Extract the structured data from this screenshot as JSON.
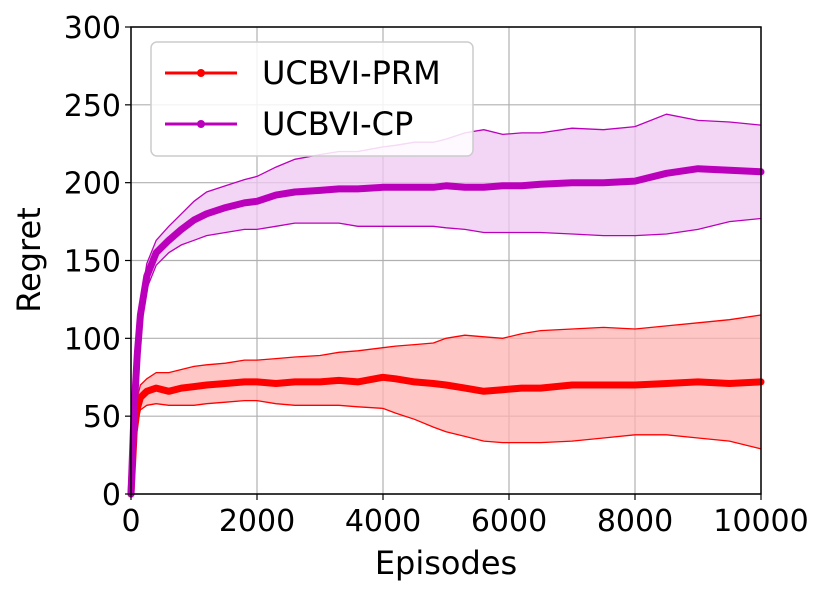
{
  "chart_data": {
    "type": "line",
    "xlabel": "Episodes",
    "ylabel": "Regret",
    "xlim": [
      0,
      10000
    ],
    "ylim": [
      0,
      300
    ],
    "xticks": [
      0,
      2000,
      4000,
      6000,
      8000,
      10000
    ],
    "yticks": [
      0,
      50,
      100,
      150,
      200,
      250,
      300
    ],
    "xtick_labels": [
      "0",
      "2000",
      "4000",
      "6000",
      "8000",
      "10000"
    ],
    "ytick_labels": [
      "0",
      "50",
      "100",
      "150",
      "200",
      "250",
      "300"
    ],
    "grid": true,
    "legend_position": "top-left",
    "series": [
      {
        "name": "UCBVI-PRM",
        "color": "#ff0000",
        "fill_color": "#ffb3b3",
        "x": [
          0,
          50,
          100,
          150,
          250,
          400,
          600,
          800,
          1000,
          1200,
          1500,
          1800,
          2000,
          2300,
          2600,
          3000,
          3300,
          3600,
          4000,
          4200,
          4500,
          4800,
          5000,
          5300,
          5600,
          5900,
          6200,
          6500,
          7000,
          7500,
          8000,
          8500,
          9000,
          9500,
          10000
        ],
        "mean": [
          0,
          40,
          55,
          62,
          66,
          68,
          66,
          68,
          69,
          70,
          71,
          72,
          72,
          71,
          72,
          72,
          73,
          72,
          75,
          74,
          72,
          71,
          70,
          68,
          66,
          67,
          68,
          68,
          70,
          70,
          70,
          71,
          72,
          71,
          72
        ],
        "upper": [
          0,
          48,
          62,
          70,
          74,
          78,
          78,
          80,
          82,
          83,
          84,
          86,
          86,
          87,
          88,
          89,
          91,
          92,
          94,
          95,
          96,
          97,
          100,
          102,
          101,
          100,
          103,
          105,
          106,
          107,
          106,
          108,
          110,
          112,
          115
        ],
        "lower": [
          0,
          32,
          47,
          54,
          57,
          58,
          57,
          57,
          57,
          58,
          59,
          60,
          60,
          58,
          57,
          57,
          57,
          56,
          55,
          52,
          48,
          43,
          40,
          37,
          34,
          33,
          33,
          33,
          34,
          36,
          38,
          38,
          36,
          34,
          29
        ]
      },
      {
        "name": "UCBVI-CP",
        "color": "#bb00bb",
        "fill_color": "#efc8f2",
        "x": [
          0,
          50,
          100,
          150,
          250,
          400,
          600,
          800,
          1000,
          1200,
          1500,
          1800,
          2000,
          2300,
          2600,
          3000,
          3300,
          3600,
          4000,
          4200,
          4500,
          4800,
          5000,
          5300,
          5600,
          5900,
          6200,
          6500,
          7000,
          7500,
          8000,
          8500,
          9000,
          9500,
          10000
        ],
        "mean": [
          0,
          55,
          90,
          115,
          140,
          155,
          163,
          170,
          176,
          180,
          184,
          187,
          188,
          192,
          194,
          195,
          196,
          196,
          197,
          197,
          197,
          197,
          198,
          197,
          197,
          198,
          198,
          199,
          200,
          200,
          201,
          206,
          209,
          208,
          207
        ],
        "upper": [
          0,
          60,
          96,
          122,
          148,
          163,
          172,
          180,
          188,
          194,
          198,
          202,
          204,
          210,
          215,
          218,
          220,
          220,
          223,
          224,
          226,
          226,
          228,
          232,
          234,
          231,
          232,
          232,
          235,
          234,
          236,
          244,
          240,
          239,
          237
        ],
        "lower": [
          0,
          50,
          84,
          108,
          132,
          147,
          155,
          160,
          163,
          166,
          168,
          170,
          170,
          172,
          174,
          174,
          174,
          172,
          172,
          172,
          172,
          172,
          171,
          170,
          168,
          168,
          168,
          168,
          167,
          166,
          166,
          167,
          170,
          175,
          177
        ]
      }
    ]
  }
}
